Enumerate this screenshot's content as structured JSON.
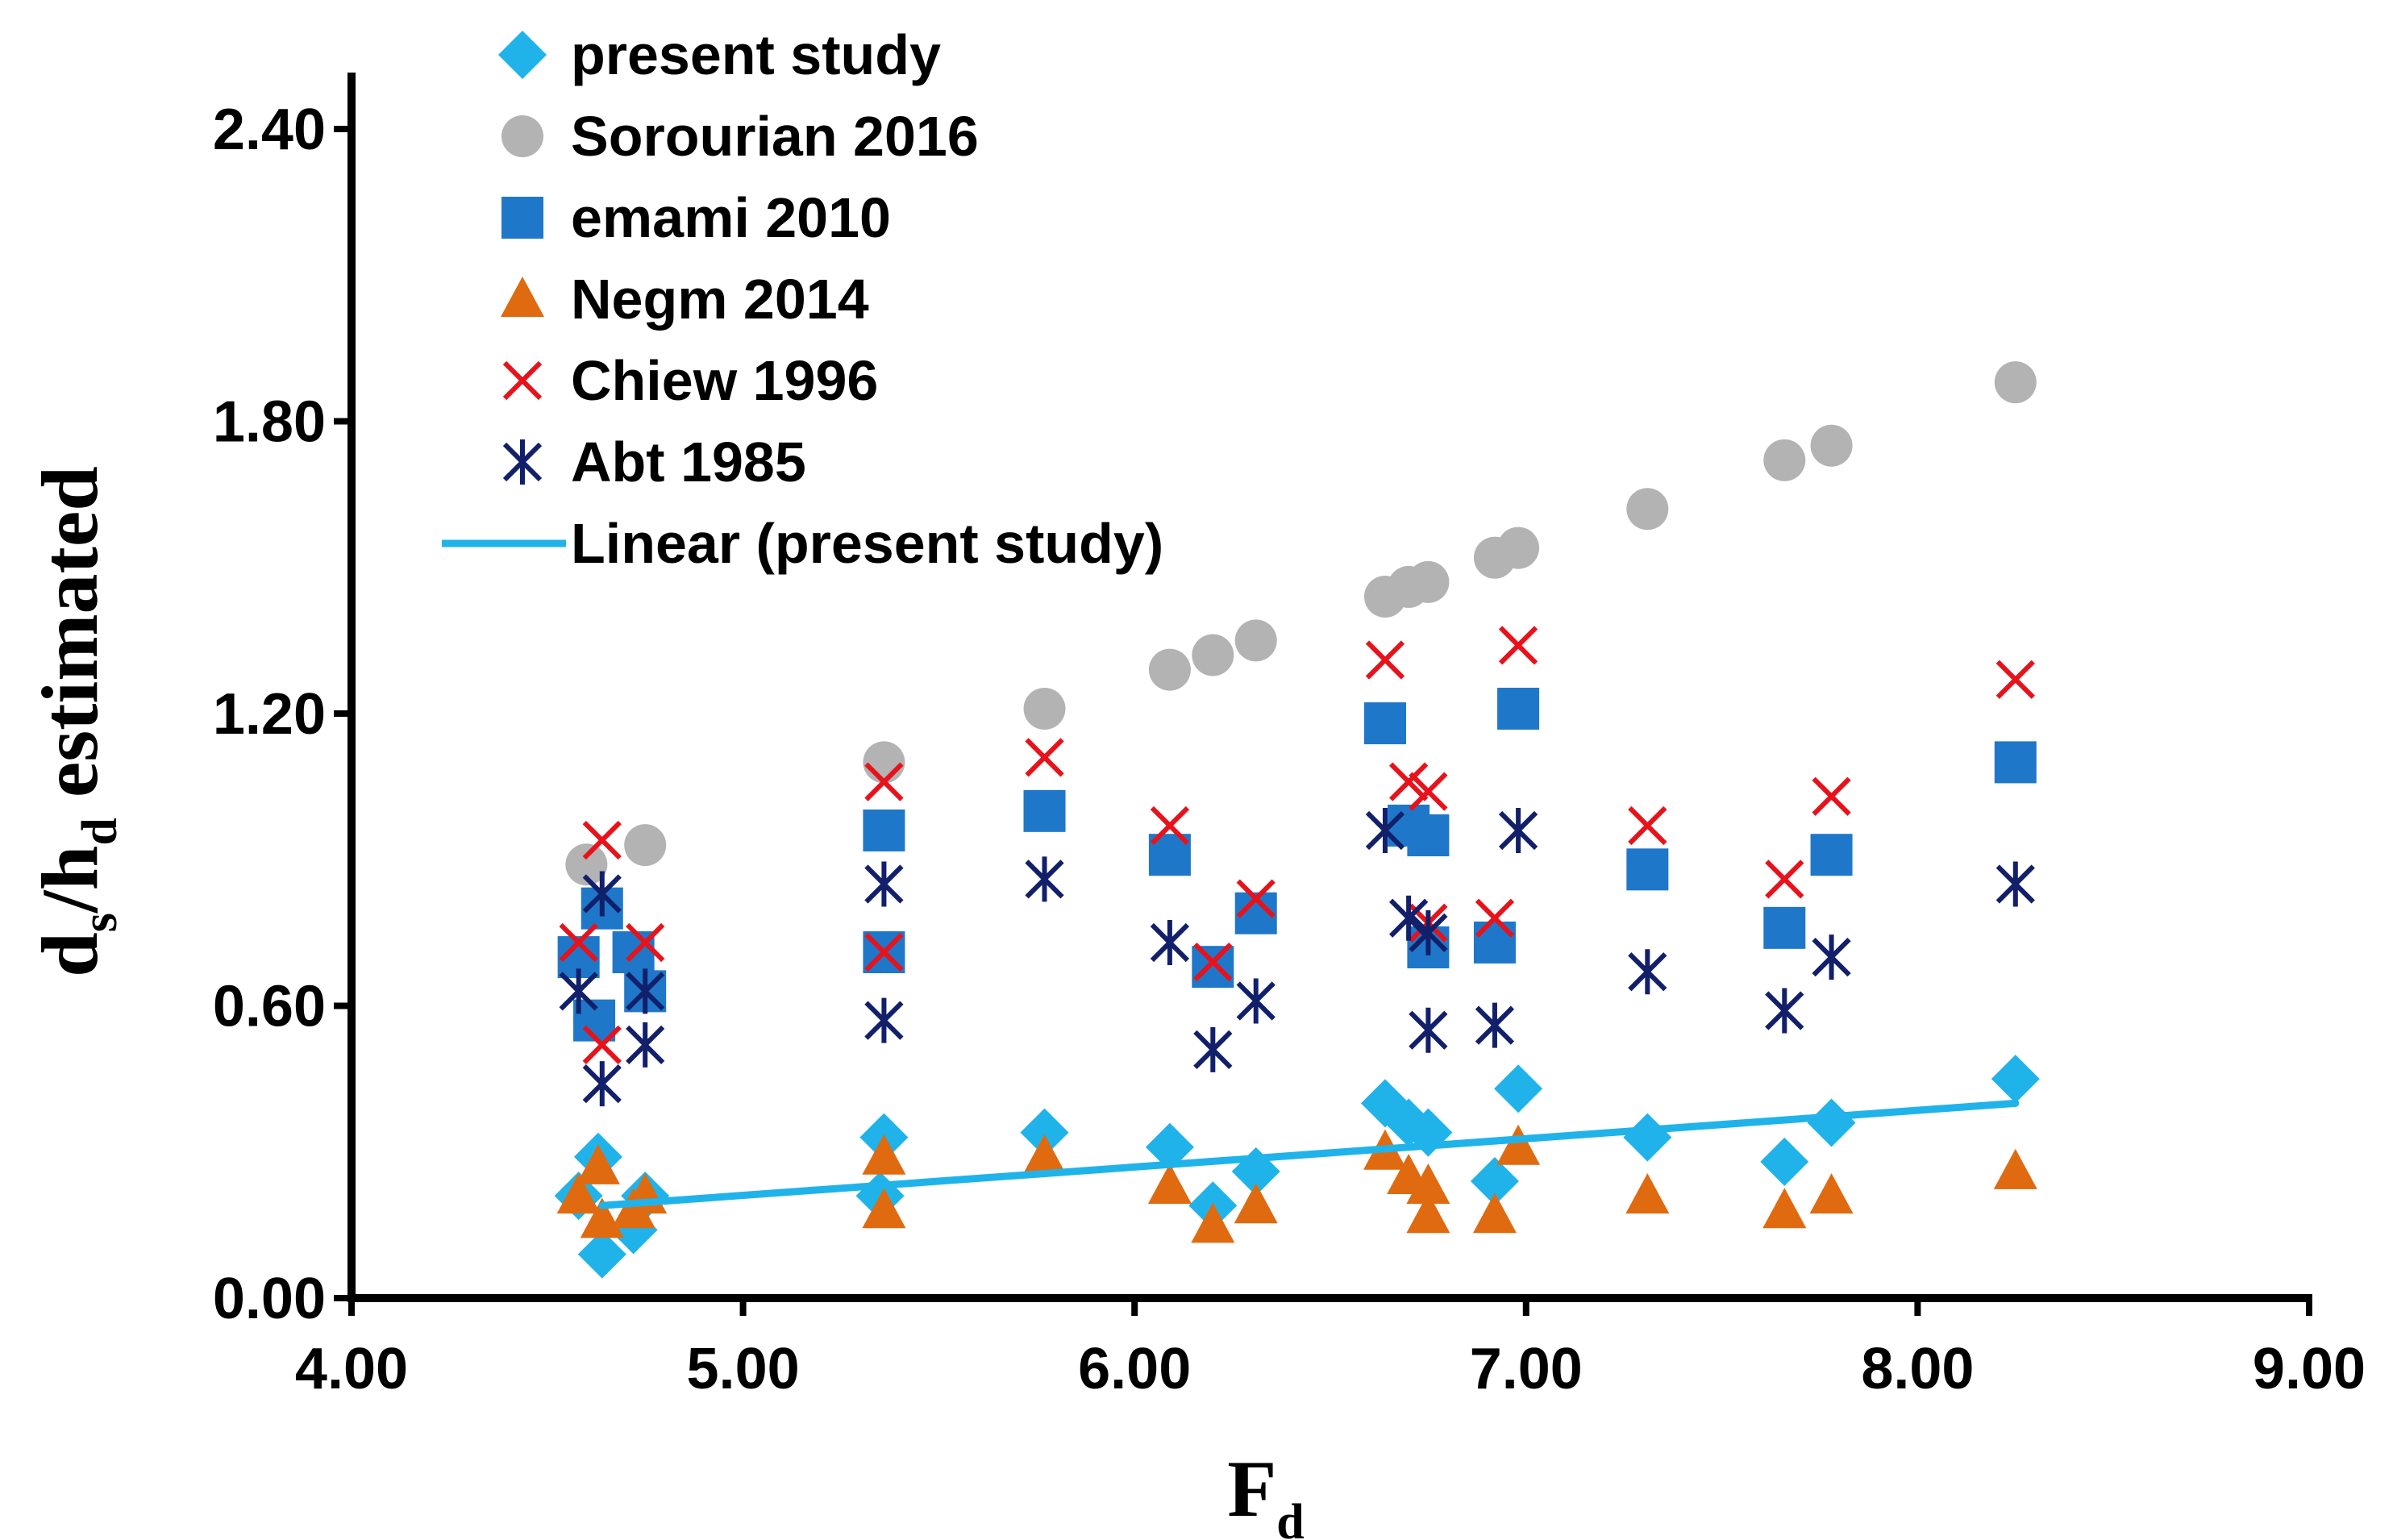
{
  "chart_data": {
    "type": "scatter",
    "title": "",
    "xlabel": {
      "main": "F",
      "sub": "d"
    },
    "ylabel": {
      "d": "d",
      "s": "s",
      "slash": "/h",
      "sub_d": "d",
      "rest": " estimated"
    },
    "xlim": [
      4.0,
      9.0
    ],
    "ylim": [
      0.0,
      2.4
    ],
    "x_ticks": [
      "4.00",
      "5.00",
      "6.00",
      "7.00",
      "8.00",
      "9.00"
    ],
    "y_ticks": [
      "0.00",
      "0.60",
      "1.20",
      "1.80",
      "2.40"
    ],
    "legend_position": "top-left",
    "series": [
      {
        "name": "present study",
        "marker": "diamond",
        "color": "#1fb3ea",
        "points": [
          [
            4.58,
            0.21
          ],
          [
            4.63,
            0.29
          ],
          [
            4.64,
            0.09
          ],
          [
            4.72,
            0.14
          ],
          [
            4.75,
            0.21
          ],
          [
            5.35,
            0.21
          ],
          [
            5.36,
            0.33
          ],
          [
            5.77,
            0.34
          ],
          [
            6.09,
            0.31
          ],
          [
            6.2,
            0.19
          ],
          [
            6.31,
            0.26
          ],
          [
            6.64,
            0.4
          ],
          [
            6.7,
            0.36
          ],
          [
            6.75,
            0.34
          ],
          [
            6.92,
            0.24
          ],
          [
            6.98,
            0.43
          ],
          [
            7.31,
            0.33
          ],
          [
            7.66,
            0.28
          ],
          [
            7.78,
            0.36
          ],
          [
            8.25,
            0.45
          ]
        ]
      },
      {
        "name": "Sorourian 2016",
        "marker": "circle",
        "color": "#b3b3b3",
        "points": [
          [
            4.6,
            0.89
          ],
          [
            4.75,
            0.93
          ],
          [
            5.36,
            1.1
          ],
          [
            5.77,
            1.21
          ],
          [
            6.09,
            1.29
          ],
          [
            6.2,
            1.32
          ],
          [
            6.31,
            1.35
          ],
          [
            6.64,
            1.44
          ],
          [
            6.7,
            1.46
          ],
          [
            6.75,
            1.47
          ],
          [
            6.92,
            1.52
          ],
          [
            6.98,
            1.54
          ],
          [
            7.31,
            1.62
          ],
          [
            7.66,
            1.72
          ],
          [
            7.78,
            1.75
          ],
          [
            8.25,
            1.88
          ]
        ]
      },
      {
        "name": "emami 2010",
        "marker": "square",
        "color": "#1f77c9",
        "points": [
          [
            4.58,
            0.7
          ],
          [
            4.62,
            0.57
          ],
          [
            4.64,
            0.8
          ],
          [
            4.72,
            0.71
          ],
          [
            4.75,
            0.63
          ],
          [
            5.36,
            0.96
          ],
          [
            5.36,
            0.71
          ],
          [
            5.77,
            1.0
          ],
          [
            6.09,
            0.91
          ],
          [
            6.2,
            0.68
          ],
          [
            6.31,
            0.79
          ],
          [
            6.64,
            1.18
          ],
          [
            6.7,
            0.97
          ],
          [
            6.75,
            0.95
          ],
          [
            6.75,
            0.72
          ],
          [
            6.92,
            0.73
          ],
          [
            6.98,
            1.21
          ],
          [
            7.31,
            0.88
          ],
          [
            7.66,
            0.76
          ],
          [
            7.78,
            0.91
          ],
          [
            8.25,
            1.1
          ]
        ]
      },
      {
        "name": "Negm 2014",
        "marker": "triangle",
        "color": "#e06a10",
        "points": [
          [
            4.58,
            0.21
          ],
          [
            4.63,
            0.27
          ],
          [
            4.64,
            0.16
          ],
          [
            4.72,
            0.18
          ],
          [
            4.75,
            0.21
          ],
          [
            5.36,
            0.18
          ],
          [
            5.36,
            0.29
          ],
          [
            5.77,
            0.29
          ],
          [
            6.09,
            0.23
          ],
          [
            6.2,
            0.15
          ],
          [
            6.31,
            0.19
          ],
          [
            6.64,
            0.3
          ],
          [
            6.7,
            0.25
          ],
          [
            6.75,
            0.17
          ],
          [
            6.75,
            0.23
          ],
          [
            6.92,
            0.17
          ],
          [
            6.98,
            0.31
          ],
          [
            7.31,
            0.21
          ],
          [
            7.66,
            0.18
          ],
          [
            7.78,
            0.21
          ],
          [
            8.25,
            0.26
          ]
        ]
      },
      {
        "name": "Chiew 1996",
        "marker": "x",
        "color": "#e8121b",
        "points": [
          [
            4.58,
            0.73
          ],
          [
            4.64,
            0.94
          ],
          [
            4.64,
            0.52
          ],
          [
            4.75,
            0.73
          ],
          [
            5.36,
            1.06
          ],
          [
            5.36,
            0.71
          ],
          [
            5.77,
            1.11
          ],
          [
            6.09,
            0.97
          ],
          [
            6.2,
            0.69
          ],
          [
            6.31,
            0.82
          ],
          [
            6.64,
            1.31
          ],
          [
            6.7,
            1.06
          ],
          [
            6.75,
            1.04
          ],
          [
            6.75,
            0.77
          ],
          [
            6.92,
            0.78
          ],
          [
            6.98,
            1.34
          ],
          [
            7.31,
            0.97
          ],
          [
            7.66,
            0.86
          ],
          [
            7.78,
            1.03
          ],
          [
            8.25,
            1.27
          ]
        ]
      },
      {
        "name": "Abt 1985",
        "marker": "star",
        "color": "#12206b",
        "points": [
          [
            4.58,
            0.63
          ],
          [
            4.64,
            0.44
          ],
          [
            4.64,
            0.83
          ],
          [
            4.75,
            0.52
          ],
          [
            4.75,
            0.63
          ],
          [
            5.36,
            0.85
          ],
          [
            5.36,
            0.57
          ],
          [
            5.77,
            0.86
          ],
          [
            6.09,
            0.73
          ],
          [
            6.2,
            0.51
          ],
          [
            6.31,
            0.61
          ],
          [
            6.64,
            0.96
          ],
          [
            6.7,
            0.78
          ],
          [
            6.75,
            0.75
          ],
          [
            6.75,
            0.55
          ],
          [
            6.92,
            0.56
          ],
          [
            6.98,
            0.96
          ],
          [
            7.31,
            0.67
          ],
          [
            7.66,
            0.59
          ],
          [
            7.78,
            0.7
          ],
          [
            8.25,
            0.85
          ]
        ]
      }
    ],
    "trendline": {
      "name": "Linear (present study)",
      "color": "#1fb3ea",
      "x": [
        4.64,
        8.25
      ],
      "y": [
        0.19,
        0.4
      ]
    }
  }
}
